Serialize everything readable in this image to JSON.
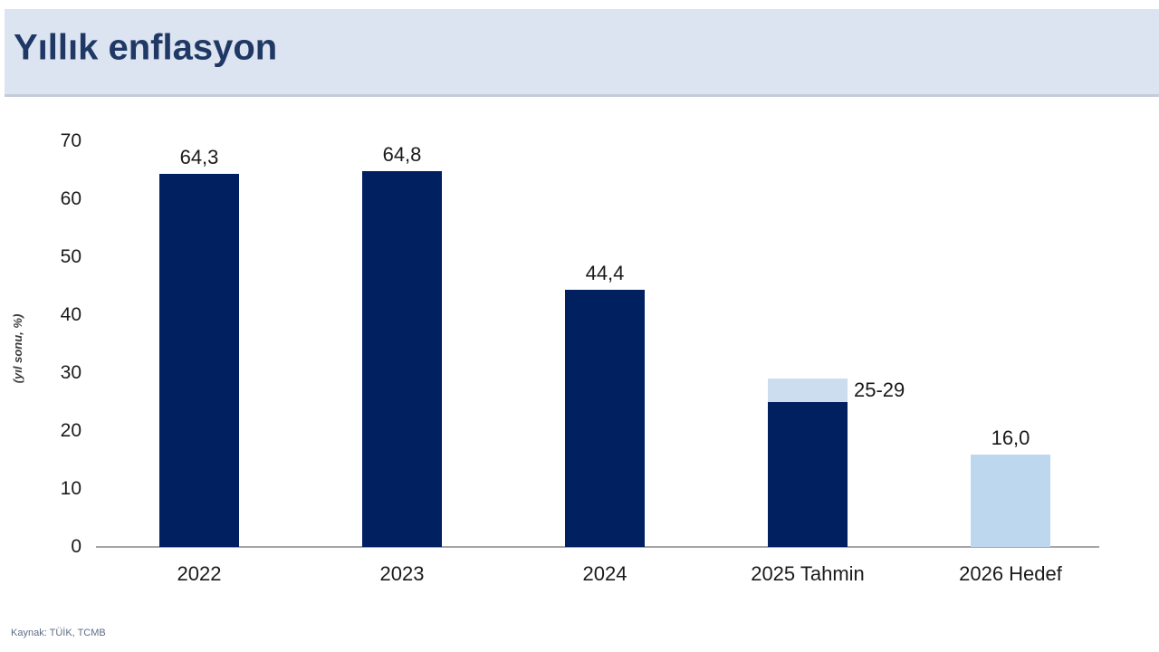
{
  "header": {
    "title": "Yıllık enflasyon"
  },
  "footer": {
    "source": "Kaynak: TÜİK, TCMB"
  },
  "chart_data": {
    "type": "bar",
    "title": "Yıllık enflasyon",
    "ylabel": "(yıl sonu, %)",
    "ylim": [
      0,
      70
    ],
    "ytick_step": 10,
    "grid": false,
    "legend": "none",
    "categories": [
      "2022",
      "2023",
      "2024",
      "2025 Tahmin",
      "2026 Hedef"
    ],
    "bars": [
      {
        "category": "2022",
        "value": 64.3,
        "label": "64,3",
        "color": "navy",
        "label_pos": "above"
      },
      {
        "category": "2023",
        "value": 64.8,
        "label": "64,8",
        "color": "navy",
        "label_pos": "above"
      },
      {
        "category": "2024",
        "value": 44.4,
        "label": "44,4",
        "color": "navy",
        "label_pos": "above"
      },
      {
        "category": "2025 Tahmin",
        "value": 25,
        "value_max": 29,
        "label": "25-29",
        "color": "navy",
        "cap_color": "cap",
        "label_pos": "right"
      },
      {
        "category": "2026 Hedef",
        "value": 16.0,
        "label": "16,0",
        "color": "light",
        "label_pos": "above"
      }
    ],
    "colors": {
      "navy": "#002060",
      "light": "#bdd7ee",
      "cap": "#ccddf0",
      "axis_line": "#a6a6a6",
      "header_bg": "#dce4f1",
      "title_text": "#1f3864"
    }
  }
}
